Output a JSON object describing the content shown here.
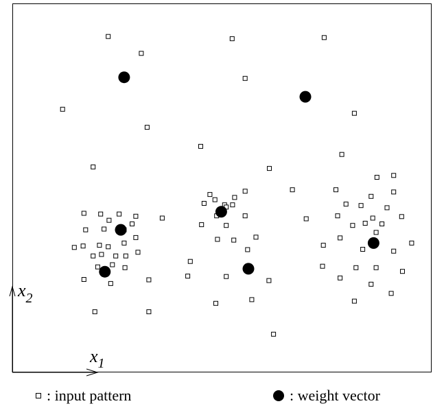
{
  "chart_data": {
    "type": "scatter",
    "xlabel": "x",
    "xlabel_sub": "1",
    "ylabel": "x",
    "ylabel_sub": "2",
    "xlim": [
      0,
      100
    ],
    "ylim": [
      0,
      100
    ],
    "grid": false,
    "legend_position": "bottom",
    "series": [
      {
        "name": "input pattern",
        "marker": "open-square",
        "points": [
          [
            22.9,
            91.2
          ],
          [
            30.8,
            86.6
          ],
          [
            52.5,
            90.6
          ],
          [
            74.5,
            90.9
          ],
          [
            12.0,
            71.4
          ],
          [
            55.6,
            79.8
          ],
          [
            81.7,
            70.3
          ],
          [
            32.2,
            66.5
          ],
          [
            45.0,
            61.3
          ],
          [
            19.3,
            55.7
          ],
          [
            78.7,
            59.1
          ],
          [
            61.4,
            55.3
          ],
          [
            17.1,
            43.1
          ],
          [
            21.1,
            42.9
          ],
          [
            25.5,
            42.9
          ],
          [
            29.5,
            42.3
          ],
          [
            23.1,
            41.2
          ],
          [
            28.6,
            40.2
          ],
          [
            17.5,
            38.6
          ],
          [
            21.9,
            38.8
          ],
          [
            26.7,
            38.6
          ],
          [
            35.8,
            41.8
          ],
          [
            16.9,
            34.2
          ],
          [
            20.8,
            34.4
          ],
          [
            22.9,
            34.0
          ],
          [
            26.7,
            35.0
          ],
          [
            29.5,
            36.5
          ],
          [
            21.3,
            31.9
          ],
          [
            27.1,
            31.5
          ],
          [
            14.8,
            33.8
          ],
          [
            19.3,
            31.5
          ],
          [
            24.7,
            31.5
          ],
          [
            30.0,
            32.5
          ],
          [
            23.9,
            29.1
          ],
          [
            20.4,
            28.5
          ],
          [
            26.9,
            28.3
          ],
          [
            17.1,
            25.1
          ],
          [
            23.5,
            24.0
          ],
          [
            32.6,
            25.0
          ],
          [
            19.7,
            16.3
          ],
          [
            32.6,
            16.3
          ],
          [
            45.8,
            45.8
          ],
          [
            47.2,
            48.2
          ],
          [
            48.4,
            46.8
          ],
          [
            50.7,
            45.4
          ],
          [
            52.6,
            45.4
          ],
          [
            55.6,
            49.1
          ],
          [
            53.1,
            47.4
          ],
          [
            51.1,
            44.8
          ],
          [
            48.8,
            42.4
          ],
          [
            45.2,
            40.0
          ],
          [
            51.1,
            39.8
          ],
          [
            55.6,
            42.4
          ],
          [
            49.0,
            36.0
          ],
          [
            52.9,
            35.8
          ],
          [
            58.2,
            36.6
          ],
          [
            56.2,
            33.2
          ],
          [
            42.5,
            30.0
          ],
          [
            41.9,
            26.0
          ],
          [
            51.1,
            25.9
          ],
          [
            61.3,
            24.8
          ],
          [
            48.6,
            18.6
          ],
          [
            57.2,
            19.6
          ],
          [
            62.4,
            10.2
          ],
          [
            66.9,
            49.5
          ],
          [
            70.2,
            41.6
          ],
          [
            77.3,
            49.5
          ],
          [
            79.7,
            45.6
          ],
          [
            83.3,
            45.2
          ],
          [
            85.7,
            47.7
          ],
          [
            91.1,
            53.4
          ],
          [
            87.1,
            52.9
          ],
          [
            91.1,
            48.9
          ],
          [
            89.5,
            44.6
          ],
          [
            86.1,
            41.8
          ],
          [
            84.3,
            40.4
          ],
          [
            77.7,
            42.4
          ],
          [
            81.3,
            39.8
          ],
          [
            88.3,
            40.2
          ],
          [
            93.0,
            42.2
          ],
          [
            86.9,
            37.9
          ],
          [
            78.3,
            36.4
          ],
          [
            83.7,
            33.3
          ],
          [
            74.3,
            34.4
          ],
          [
            95.4,
            35.0
          ],
          [
            91.1,
            32.8
          ],
          [
            82.1,
            28.3
          ],
          [
            86.9,
            28.3
          ],
          [
            74.1,
            28.7
          ],
          [
            93.2,
            27.3
          ],
          [
            78.3,
            25.5
          ],
          [
            85.7,
            23.8
          ],
          [
            90.5,
            21.3
          ],
          [
            81.7,
            19.2
          ]
        ]
      },
      {
        "name": "weight vector",
        "marker": "filled-circle",
        "points": [
          [
            26.7,
            80.1
          ],
          [
            70.0,
            74.8
          ],
          [
            25.9,
            38.6
          ],
          [
            49.9,
            43.5
          ],
          [
            22.1,
            27.2
          ],
          [
            56.4,
            28.0
          ],
          [
            86.3,
            35.0
          ]
        ]
      }
    ]
  },
  "legend": {
    "input_label": ": input pattern",
    "weight_label": ": weight vector"
  }
}
